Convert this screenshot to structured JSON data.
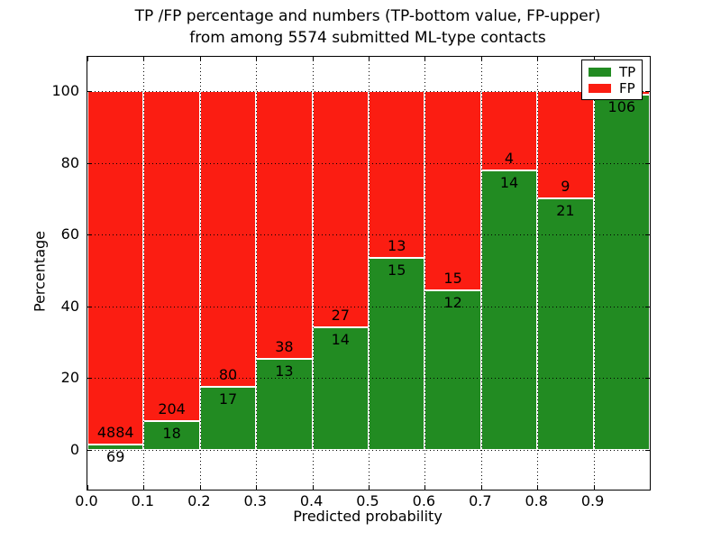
{
  "title": {
    "line1": "TP /FP percentage and numbers (TP-bottom value, FP-upper)",
    "line2": "from among 5574 submitted ML-type contacts"
  },
  "axes": {
    "xlabel": "Predicted probability",
    "ylabel": "Percentage",
    "x_tick_labels": [
      "0.0",
      "0.1",
      "0.2",
      "0.3",
      "0.4",
      "0.5",
      "0.6",
      "0.7",
      "0.8",
      "0.9"
    ],
    "y_tick_labels": [
      "0",
      "20",
      "40",
      "60",
      "80",
      "100"
    ]
  },
  "legend": {
    "items": [
      {
        "label": "TP",
        "color": "#228b22"
      },
      {
        "label": "FP",
        "color": "#fb1d12"
      }
    ],
    "position": "upper right"
  },
  "colors": {
    "tp_green": "#228b22",
    "fp_red": "#fb1d12",
    "grid": "#000000",
    "bar_edge": "#ffffff",
    "background": "#ffffff"
  },
  "chart_data": {
    "type": "bar",
    "stacked": true,
    "normalization": "each bin scaled to 100%; counts shown as labels",
    "title": "TP /FP percentage and numbers (TP-bottom value, FP-upper) from among 5574 submitted ML-type contacts",
    "xlabel": "Predicted probability",
    "ylabel": "Percentage",
    "total_submitted": 5574,
    "bins": [
      "0.0-0.1",
      "0.1-0.2",
      "0.2-0.3",
      "0.3-0.4",
      "0.4-0.5",
      "0.5-0.6",
      "0.6-0.7",
      "0.7-0.8",
      "0.8-0.9",
      "0.9-1.0"
    ],
    "series": [
      {
        "name": "TP",
        "color": "#228b22",
        "counts": [
          69,
          18,
          17,
          13,
          14,
          15,
          12,
          14,
          21,
          106
        ]
      },
      {
        "name": "FP",
        "color": "#fb1d12",
        "counts": [
          4884,
          204,
          80,
          38,
          27,
          13,
          15,
          4,
          9,
          1
        ]
      }
    ],
    "fp_label_visible": [
      true,
      true,
      true,
      true,
      true,
      true,
      true,
      true,
      true,
      false
    ],
    "xlim": [
      0.0,
      1.0
    ],
    "ylim": [
      -11,
      110
    ],
    "x_ticks": [
      0.0,
      0.1,
      0.2,
      0.3,
      0.4,
      0.5,
      0.6,
      0.7,
      0.8,
      0.9,
      1.0
    ],
    "y_ticks": [
      0,
      20,
      40,
      60,
      80,
      100
    ],
    "grid": {
      "style": "dotted",
      "color": "#000000"
    },
    "legend_position": "upper right"
  }
}
